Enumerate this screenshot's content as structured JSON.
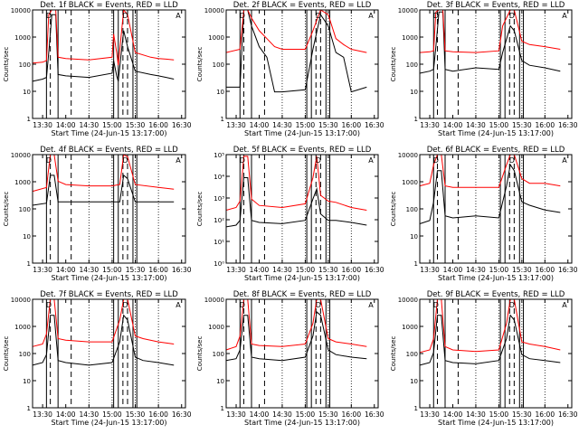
{
  "figure": {
    "colors": {
      "events": "#000000",
      "lld": "#ff0000",
      "axis": "#000000"
    }
  },
  "chart_data": [
    {
      "type": "line",
      "title": "Det. 1f BLACK = Events, RED = LLD",
      "xlabel": "Start Time (24-Jun-15 13:17:00)",
      "ylabel": "Counts/sec",
      "x_ticks": [
        "13:30",
        "14:00",
        "14:30",
        "15:00",
        "15:30",
        "16:00",
        "16:30"
      ],
      "y_ticks": [
        "1",
        "10",
        "100",
        "1000",
        "10000"
      ],
      "ylim": [
        1,
        12000
      ],
      "y_scale": "log",
      "series": [
        {
          "color": "#000000",
          "x": [
            "13:17",
            "13:30",
            "13:35",
            "13:38",
            "13:42",
            "13:47",
            "13:50",
            "14:00",
            "14:30",
            "15:00",
            "15:02",
            "15:06",
            "15:08",
            "15:15",
            "15:20",
            "15:30",
            "15:50",
            "16:00",
            "16:10",
            "16:20"
          ],
          "values": [
            25,
            30,
            35,
            300,
            8000,
            8000,
            45,
            40,
            35,
            50,
            150,
            40,
            25,
            2000,
            500,
            60,
            45,
            40,
            35,
            30
          ]
        },
        {
          "color": "#ff0000",
          "x": [
            "13:17",
            "13:30",
            "13:35",
            "13:38",
            "13:42",
            "13:47",
            "13:50",
            "14:00",
            "14:30",
            "15:00",
            "15:02",
            "15:06",
            "15:08",
            "15:15",
            "15:20",
            "15:30",
            "15:50",
            "16:00",
            "16:10",
            "16:20"
          ],
          "values": [
            120,
            130,
            150,
            8000,
            12000,
            12000,
            200,
            180,
            160,
            200,
            1500,
            300,
            100,
            12000,
            8000,
            300,
            200,
            180,
            170,
            160
          ]
        }
      ],
      "annotations": [
        "D",
        "D",
        "A"
      ]
    },
    {
      "type": "line",
      "title": "Det. 2f BLACK = Events, RED = LLD",
      "xlabel": "Start Time (24-Jun-15 13:17:00)",
      "ylabel": "Counts/sec",
      "x_ticks": [
        "13:30",
        "14:00",
        "14:30",
        "15:00",
        "15:30",
        "16:00",
        "16:30"
      ],
      "y_ticks": [
        "1",
        "10",
        "100",
        "1000",
        "10000"
      ],
      "ylim": [
        1,
        12000
      ],
      "y_scale": "log",
      "series": [
        {
          "color": "#000000",
          "x": [
            "13:17",
            "13:35",
            "13:40",
            "13:45",
            "13:50",
            "14:00",
            "14:10",
            "14:20",
            "14:30",
            "15:00",
            "15:10",
            "15:20",
            "15:30",
            "15:40",
            "15:50",
            "16:00",
            "16:20"
          ],
          "values": [
            15,
            15,
            12000,
            12000,
            3000,
            500,
            200,
            10,
            10,
            12,
            400,
            8000,
            3000,
            300,
            200,
            10,
            15
          ]
        },
        {
          "color": "#ff0000",
          "x": [
            "13:17",
            "13:35",
            "13:40",
            "13:45",
            "13:50",
            "14:00",
            "14:10",
            "14:20",
            "14:30",
            "15:00",
            "15:10",
            "15:20",
            "15:30",
            "15:40",
            "15:50",
            "16:00",
            "16:20"
          ],
          "values": [
            300,
            400,
            12000,
            12000,
            6000,
            2000,
            1000,
            500,
            400,
            400,
            2000,
            12000,
            8000,
            1000,
            600,
            400,
            300
          ]
        }
      ],
      "annotations": [
        "D",
        "D",
        "A"
      ]
    },
    {
      "type": "line",
      "title": "Det. 3f BLACK = Events, RED = LLD",
      "xlabel": "Start Time (24-Jun-15 13:17:00)",
      "ylabel": "Counts/sec",
      "x_ticks": [
        "13:30",
        "14:00",
        "14:30",
        "15:00",
        "15:30",
        "16:00",
        "16:30"
      ],
      "y_ticks": [
        "1",
        "10",
        "100",
        "1000",
        "10000"
      ],
      "ylim": [
        1,
        12000
      ],
      "y_scale": "log",
      "series": [
        {
          "color": "#000000",
          "x": [
            "13:17",
            "13:30",
            "13:35",
            "13:38",
            "13:42",
            "13:47",
            "13:50",
            "14:00",
            "14:30",
            "15:00",
            "15:05",
            "15:15",
            "15:20",
            "15:30",
            "15:40",
            "16:00",
            "16:20"
          ],
          "values": [
            50,
            60,
            70,
            500,
            10000,
            10000,
            70,
            60,
            80,
            70,
            300,
            3000,
            2000,
            150,
            100,
            80,
            60
          ]
        },
        {
          "color": "#ff0000",
          "x": [
            "13:17",
            "13:30",
            "13:35",
            "13:38",
            "13:42",
            "13:47",
            "13:50",
            "14:00",
            "14:30",
            "15:00",
            "15:05",
            "15:15",
            "15:20",
            "15:30",
            "15:40",
            "16:00",
            "16:20"
          ],
          "values": [
            300,
            320,
            350,
            10000,
            12000,
            12000,
            350,
            320,
            300,
            350,
            3000,
            12000,
            12000,
            800,
            600,
            500,
            400
          ]
        }
      ],
      "annotations": [
        "D",
        "D",
        "A"
      ]
    },
    {
      "type": "line",
      "title": "Det. 4f BLACK = Events, RED = LLD",
      "xlabel": "Start Time (24-Jun-15 13:17:00)",
      "ylabel": "Counts/sec",
      "x_ticks": [
        "13:30",
        "14:00",
        "14:30",
        "15:00",
        "15:30",
        "16:00",
        "16:30"
      ],
      "y_ticks": [
        "1",
        "10",
        "100",
        "1000",
        "10000"
      ],
      "ylim": [
        1,
        12000
      ],
      "y_scale": "log",
      "series": [
        {
          "color": "#000000",
          "x": [
            "13:17",
            "13:35",
            "13:40",
            "13:45",
            "13:50",
            "14:00",
            "14:30",
            "15:00",
            "15:10",
            "15:15",
            "15:20",
            "15:30",
            "16:00",
            "16:20"
          ],
          "values": [
            150,
            180,
            2000,
            2000,
            200,
            200,
            200,
            200,
            200,
            2000,
            1500,
            200,
            200,
            200
          ]
        },
        {
          "color": "#ff0000",
          "x": [
            "13:17",
            "13:35",
            "13:40",
            "13:45",
            "13:50",
            "14:00",
            "14:30",
            "15:00",
            "15:10",
            "15:15",
            "15:20",
            "15:30",
            "16:00",
            "16:20"
          ],
          "values": [
            500,
            700,
            12000,
            12000,
            1200,
            900,
            800,
            800,
            900,
            12000,
            10000,
            900,
            700,
            600
          ]
        }
      ],
      "annotations": [
        "D",
        "D",
        "A"
      ]
    },
    {
      "type": "line",
      "title": "Det. 5f BLACK = Events, RED = LLD",
      "xlabel": "Start Time (24-Jun-15 13:17:00)",
      "ylabel": "Counts/sec",
      "x_ticks": [
        "13:30",
        "14:00",
        "14:30",
        "15:00",
        "15:30",
        "16:00",
        "16:30"
      ],
      "y_ticks": [
        "10⁰",
        "10¹",
        "10²",
        "10³",
        "10⁴",
        "10⁵"
      ],
      "ylim": [
        1,
        120000
      ],
      "y_scale": "log",
      "series": [
        {
          "color": "#000000",
          "x": [
            "13:17",
            "13:30",
            "13:35",
            "13:40",
            "13:45",
            "13:50",
            "14:00",
            "14:30",
            "15:00",
            "15:10",
            "15:15",
            "15:20",
            "15:30",
            "15:40",
            "16:00",
            "16:20"
          ],
          "values": [
            50,
            60,
            100,
            10000,
            10000,
            100,
            80,
            70,
            100,
            1000,
            3000,
            200,
            100,
            100,
            80,
            60
          ]
        },
        {
          "color": "#ff0000",
          "x": [
            "13:17",
            "13:30",
            "13:35",
            "13:40",
            "13:45",
            "13:50",
            "14:00",
            "14:30",
            "15:00",
            "15:10",
            "15:15",
            "15:20",
            "15:30",
            "15:40",
            "16:00",
            "16:20"
          ],
          "values": [
            300,
            400,
            800,
            100000,
            100000,
            1000,
            500,
            400,
            600,
            10000,
            100000,
            1500,
            800,
            700,
            400,
            300
          ]
        }
      ],
      "annotations": [
        "D",
        "D",
        "A"
      ]
    },
    {
      "type": "line",
      "title": "Det. 6f BLACK = Events, RED = LLD",
      "xlabel": "Start Time (24-Jun-15 13:17:00)",
      "ylabel": "Counts/sec",
      "x_ticks": [
        "13:30",
        "14:00",
        "14:30",
        "15:00",
        "15:30",
        "16:00",
        "16:30"
      ],
      "y_ticks": [
        "1",
        "10",
        "100",
        "1000",
        "10000"
      ],
      "ylim": [
        1,
        12000
      ],
      "y_scale": "log",
      "series": [
        {
          "color": "#000000",
          "x": [
            "13:17",
            "13:30",
            "13:35",
            "13:40",
            "13:45",
            "13:50",
            "14:00",
            "14:30",
            "15:00",
            "15:10",
            "15:15",
            "15:20",
            "15:30",
            "15:40",
            "16:00",
            "16:20"
          ],
          "values": [
            30,
            40,
            200,
            3000,
            3000,
            60,
            50,
            60,
            50,
            800,
            5000,
            3000,
            200,
            150,
            100,
            80
          ]
        },
        {
          "color": "#ff0000",
          "x": [
            "13:17",
            "13:30",
            "13:35",
            "13:40",
            "13:45",
            "13:50",
            "14:00",
            "14:30",
            "15:00",
            "15:10",
            "15:15",
            "15:20",
            "15:30",
            "15:40",
            "16:00",
            "16:20"
          ],
          "values": [
            800,
            1000,
            5000,
            12000,
            12000,
            800,
            700,
            700,
            700,
            5000,
            12000,
            12000,
            1500,
            1000,
            1000,
            800
          ]
        }
      ],
      "annotations": [
        "D",
        "D",
        "A"
      ]
    },
    {
      "type": "line",
      "title": "Det. 7f BLACK = Events, RED = LLD",
      "xlabel": "Start Time (24-Jun-15 13:17:00)",
      "ylabel": "Counts/sec",
      "x_ticks": [
        "13:30",
        "14:00",
        "14:30",
        "15:00",
        "15:30",
        "16:00",
        "16:30"
      ],
      "y_ticks": [
        "1",
        "10",
        "100",
        "1000",
        "10000"
      ],
      "ylim": [
        1,
        12000
      ],
      "y_scale": "log",
      "series": [
        {
          "color": "#000000",
          "x": [
            "13:17",
            "13:30",
            "13:35",
            "13:40",
            "13:45",
            "13:50",
            "14:00",
            "14:30",
            "15:00",
            "15:10",
            "15:15",
            "15:20",
            "15:30",
            "15:40",
            "16:00",
            "16:20"
          ],
          "values": [
            40,
            50,
            100,
            3000,
            3000,
            60,
            50,
            40,
            50,
            300,
            3000,
            2000,
            80,
            60,
            50,
            40
          ]
        },
        {
          "color": "#ff0000",
          "x": [
            "13:17",
            "13:30",
            "13:35",
            "13:40",
            "13:45",
            "13:50",
            "14:00",
            "14:30",
            "15:00",
            "15:10",
            "15:15",
            "15:20",
            "15:30",
            "15:40",
            "16:00",
            "16:20"
          ],
          "values": [
            200,
            250,
            600,
            12000,
            12000,
            400,
            350,
            300,
            300,
            2000,
            12000,
            12000,
            500,
            400,
            300,
            250
          ]
        }
      ],
      "annotations": [
        "D",
        "D",
        "A"
      ]
    },
    {
      "type": "line",
      "title": "Det. 8f BLACK = Events, RED = LLD",
      "xlabel": "Start Time (24-Jun-15 13:17:00)",
      "ylabel": "Counts/sec",
      "x_ticks": [
        "13:30",
        "14:00",
        "14:30",
        "15:00",
        "15:30",
        "16:00",
        "16:30"
      ],
      "y_ticks": [
        "1",
        "10",
        "100",
        "1000",
        "10000"
      ],
      "ylim": [
        1,
        12000
      ],
      "y_scale": "log",
      "series": [
        {
          "color": "#000000",
          "x": [
            "13:17",
            "13:30",
            "13:35",
            "13:40",
            "13:45",
            "13:50",
            "14:00",
            "14:30",
            "15:00",
            "15:10",
            "15:15",
            "15:20",
            "15:30",
            "15:40",
            "16:00",
            "16:20"
          ],
          "values": [
            60,
            70,
            150,
            3000,
            3000,
            80,
            70,
            60,
            80,
            500,
            4000,
            3000,
            150,
            100,
            80,
            70
          ]
        },
        {
          "color": "#ff0000",
          "x": [
            "13:17",
            "13:30",
            "13:35",
            "13:40",
            "13:45",
            "13:50",
            "14:00",
            "14:30",
            "15:00",
            "15:10",
            "15:15",
            "15:20",
            "15:30",
            "15:40",
            "16:00",
            "16:20"
          ],
          "values": [
            150,
            200,
            500,
            12000,
            12000,
            250,
            220,
            200,
            250,
            1500,
            12000,
            12000,
            400,
            300,
            250,
            200
          ]
        }
      ],
      "annotations": [
        "D",
        "D",
        "A"
      ]
    },
    {
      "type": "line",
      "title": "Det. 9f BLACK = Events, RED = LLD",
      "xlabel": "Start Time (24-Jun-15 13:17:00)",
      "ylabel": "Counts/sec",
      "x_ticks": [
        "13:30",
        "14:00",
        "14:30",
        "15:00",
        "15:30",
        "16:00",
        "16:30"
      ],
      "y_ticks": [
        "1",
        "10",
        "100",
        "1000",
        "10000"
      ],
      "ylim": [
        1,
        12000
      ],
      "y_scale": "log",
      "series": [
        {
          "color": "#000000",
          "x": [
            "13:17",
            "13:30",
            "13:35",
            "13:40",
            "13:45",
            "13:50",
            "14:00",
            "14:30",
            "15:00",
            "15:10",
            "15:15",
            "15:20",
            "15:30",
            "15:40",
            "16:00",
            "16:20"
          ],
          "values": [
            40,
            50,
            120,
            3000,
            3000,
            60,
            50,
            45,
            60,
            400,
            3000,
            2000,
            100,
            70,
            60,
            50
          ]
        },
        {
          "color": "#ff0000",
          "x": [
            "13:17",
            "13:30",
            "13:35",
            "13:40",
            "13:45",
            "13:50",
            "14:00",
            "14:30",
            "15:00",
            "15:10",
            "15:15",
            "15:20",
            "15:30",
            "15:40",
            "16:00",
            "16:20"
          ],
          "values": [
            120,
            150,
            400,
            12000,
            12000,
            200,
            150,
            130,
            150,
            1500,
            12000,
            12000,
            300,
            250,
            200,
            150
          ]
        }
      ],
      "annotations": [
        "D",
        "D",
        "A"
      ]
    }
  ]
}
